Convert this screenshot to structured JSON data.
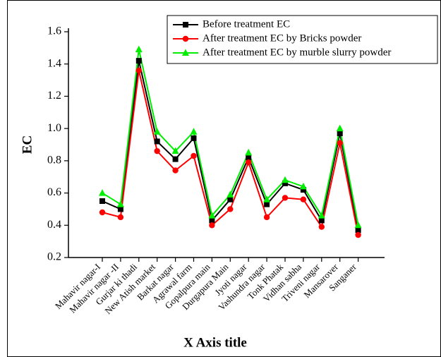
{
  "chart_data": {
    "type": "line",
    "x_label": "X Axis title",
    "y_label": "EC",
    "categories": [
      "Mahavir nagar-I",
      "Mahavir nagar -II",
      "Gurjar ki thadi",
      "New Atish market",
      "Barkat nagar",
      "Agrawal farm",
      "Gopalpura main",
      "Durgapura Main",
      "Jyoti nagar",
      "Vashundra nagar",
      "Tonk Phatak",
      "Vidhan sabha",
      "Triveni nagar",
      "Mansarover",
      "Sanganer"
    ],
    "series": [
      {
        "name": "Before treatment EC",
        "color": "#000000",
        "marker": "square",
        "values": [
          0.55,
          0.5,
          1.42,
          0.92,
          0.81,
          0.94,
          0.43,
          0.56,
          0.82,
          0.53,
          0.66,
          0.62,
          0.43,
          0.97,
          0.37
        ]
      },
      {
        "name": "After treatment EC by Bricks powder",
        "color": "#ff0000",
        "marker": "circle",
        "values": [
          0.48,
          0.45,
          1.36,
          0.86,
          0.74,
          0.83,
          0.4,
          0.5,
          0.79,
          0.45,
          0.57,
          0.56,
          0.39,
          0.91,
          0.34
        ]
      },
      {
        "name": "After treatment EC by murble slurry powder",
        "color": "#00ee00",
        "marker": "triangle",
        "values": [
          0.6,
          0.53,
          1.49,
          0.98,
          0.86,
          0.98,
          0.46,
          0.59,
          0.85,
          0.56,
          0.68,
          0.64,
          0.46,
          1.0,
          0.4
        ]
      }
    ],
    "ylim": [
      0.2,
      1.6
    ],
    "yticks": [
      0.2,
      0.4,
      0.6,
      0.8,
      {
        "value": 1,
        "label": "1.0"
      },
      1.2,
      1.4,
      1.6
    ],
    "grid": false,
    "legend": "top-right"
  }
}
